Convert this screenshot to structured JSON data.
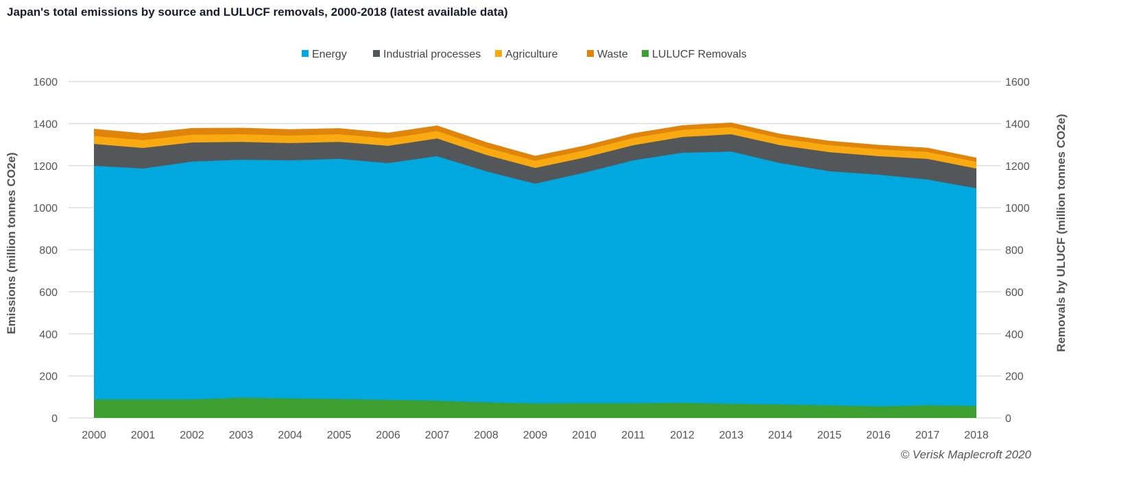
{
  "title": "Japan's total emissions by source and LULUCF removals, 2000-2018 (latest available data)",
  "copyright": "© Verisk Maplecroft 2020",
  "chart_data": {
    "type": "area",
    "stacked": true,
    "title": "Japan's total emissions by source and LULUCF removals, 2000-2018 (latest available data)",
    "ylabel": "Emissions (million tonnes CO2e)",
    "ylabel_right": "Removals by ULUCF (million tonnes CO2e)",
    "ylim": [
      0,
      1600
    ],
    "yticks": [
      0,
      200,
      400,
      600,
      800,
      1000,
      1200,
      1400,
      1600
    ],
    "grid": true,
    "legend_position": "top",
    "categories": [
      "2000",
      "2001",
      "2002",
      "2003",
      "2004",
      "2005",
      "2006",
      "2007",
      "2008",
      "2009",
      "2010",
      "2011",
      "2012",
      "2013",
      "2014",
      "2015",
      "2016",
      "2017",
      "2018"
    ],
    "series": [
      {
        "name": "Energy",
        "color": "#00A8E0",
        "values": [
          1199,
          1186,
          1219,
          1228,
          1225,
          1232,
          1212,
          1245,
          1173,
          1114,
          1166,
          1225,
          1261,
          1267,
          1212,
          1173,
          1157,
          1134,
          1092
        ]
      },
      {
        "name": "Industrial processes",
        "color": "#54575A",
        "values": [
          104,
          98,
          91,
          85,
          82,
          81,
          82,
          84,
          78,
          75,
          72,
          72,
          75,
          82,
          85,
          91,
          88,
          98,
          94
        ]
      },
      {
        "name": "Agriculture",
        "color": "#F9AA10",
        "values": [
          38,
          37,
          37,
          36,
          36,
          36,
          35,
          35,
          35,
          34,
          34,
          34,
          34,
          34,
          33,
          33,
          33,
          33,
          32
        ]
      },
      {
        "name": "Waste",
        "color": "#E0850A",
        "values": [
          34,
          33,
          32,
          31,
          30,
          29,
          28,
          27,
          26,
          24,
          23,
          23,
          22,
          22,
          21,
          21,
          21,
          20,
          20
        ]
      },
      {
        "name": "LULUCF Removals",
        "color": "#3C9F2F",
        "overlay": true,
        "values": [
          88,
          88,
          88,
          96,
          93,
          90,
          86,
          82,
          74,
          69,
          70,
          70,
          72,
          67,
          64,
          60,
          55,
          60,
          57
        ]
      }
    ]
  }
}
